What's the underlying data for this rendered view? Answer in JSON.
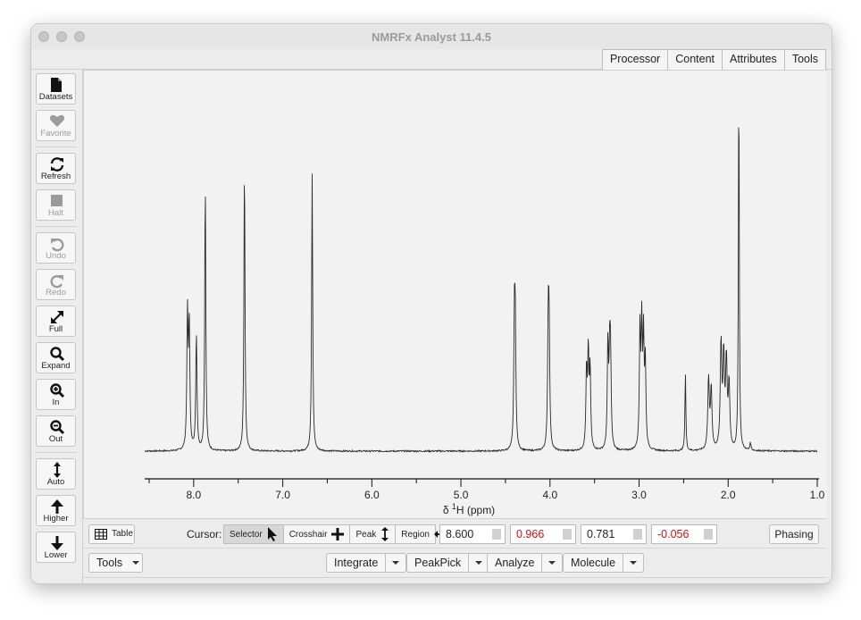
{
  "window": {
    "title": "NMRFx Analyst 11.4.5"
  },
  "tabs": [
    "Processor",
    "Content",
    "Attributes",
    "Tools"
  ],
  "toolbar": {
    "datasets": "Datasets",
    "favorite": "Favorite",
    "refresh": "Refresh",
    "halt": "Halt",
    "undo": "Undo",
    "redo": "Redo",
    "full": "Full",
    "expand": "Expand",
    "zoom_in": "In",
    "zoom_out": "Out",
    "auto": "Auto",
    "higher": "Higher",
    "lower": "Lower"
  },
  "axis": {
    "label_prefix": "δ ",
    "label_sup": "1",
    "label_suffix": "H (ppm)",
    "ticks": [
      "8.0",
      "7.0",
      "6.0",
      "5.0",
      "4.0",
      "3.0",
      "2.0",
      "1.0"
    ]
  },
  "cursor_bar": {
    "table": "Table",
    "cursor_label": "Cursor:",
    "modes": [
      "Selector",
      "Crosshair",
      "Peak",
      "Region"
    ],
    "fields": [
      {
        "value": "8.600",
        "color": "#000000"
      },
      {
        "value": "0.966",
        "color": "#d01010"
      },
      {
        "value": "0.781",
        "color": "#000000"
      },
      {
        "value": "-0.056",
        "color": "#d01010"
      }
    ],
    "phasing": "Phasing"
  },
  "bottom_bar": {
    "tools": "Tools",
    "menus": [
      "Integrate",
      "PeakPick",
      "Analyze",
      "Molecule"
    ]
  },
  "chart_data": {
    "type": "line",
    "xlabel": "δ 1H (ppm)",
    "xlim": [
      8.55,
      1.0
    ],
    "x_reversed": true,
    "ticks_major": [
      8.0,
      7.0,
      6.0,
      5.0,
      4.0,
      3.0,
      2.0,
      1.0
    ],
    "baseline": 0.0,
    "ylim": [
      -0.02,
      1.0
    ],
    "peaks": [
      {
        "ppm": 8.07,
        "height": 0.36,
        "width": 0.008
      },
      {
        "ppm": 8.05,
        "height": 0.33,
        "width": 0.008
      },
      {
        "ppm": 7.97,
        "height": 0.31,
        "width": 0.008
      },
      {
        "ppm": 7.87,
        "height": 0.72,
        "width": 0.007
      },
      {
        "ppm": 7.43,
        "height": 0.77,
        "width": 0.007
      },
      {
        "ppm": 6.67,
        "height": 0.74,
        "width": 0.007
      },
      {
        "ppm": 4.4,
        "height": 0.31,
        "width": 0.008
      },
      {
        "ppm": 4.39,
        "height": 0.31,
        "width": 0.008
      },
      {
        "ppm": 4.02,
        "height": 0.31,
        "width": 0.008
      },
      {
        "ppm": 4.01,
        "height": 0.3,
        "width": 0.008
      },
      {
        "ppm": 3.59,
        "height": 0.21,
        "width": 0.008
      },
      {
        "ppm": 3.57,
        "height": 0.25,
        "width": 0.008
      },
      {
        "ppm": 3.55,
        "height": 0.21,
        "width": 0.008
      },
      {
        "ppm": 3.35,
        "height": 0.28,
        "width": 0.008
      },
      {
        "ppm": 3.33,
        "height": 0.23,
        "width": 0.008
      },
      {
        "ppm": 3.32,
        "height": 0.21,
        "width": 0.008
      },
      {
        "ppm": 2.99,
        "height": 0.31,
        "width": 0.008
      },
      {
        "ppm": 2.97,
        "height": 0.31,
        "width": 0.008
      },
      {
        "ppm": 2.95,
        "height": 0.28,
        "width": 0.008
      },
      {
        "ppm": 2.93,
        "height": 0.22,
        "width": 0.008
      },
      {
        "ppm": 2.48,
        "height": 0.21,
        "width": 0.006
      },
      {
        "ppm": 2.22,
        "height": 0.19,
        "width": 0.01
      },
      {
        "ppm": 2.19,
        "height": 0.16,
        "width": 0.01
      },
      {
        "ppm": 2.08,
        "height": 0.28,
        "width": 0.01
      },
      {
        "ppm": 2.05,
        "height": 0.24,
        "width": 0.01
      },
      {
        "ppm": 2.02,
        "height": 0.23,
        "width": 0.01
      },
      {
        "ppm": 1.99,
        "height": 0.17,
        "width": 0.01
      },
      {
        "ppm": 1.88,
        "height": 0.99,
        "width": 0.006
      },
      {
        "ppm": 1.75,
        "height": 0.02,
        "width": 0.008
      }
    ]
  }
}
